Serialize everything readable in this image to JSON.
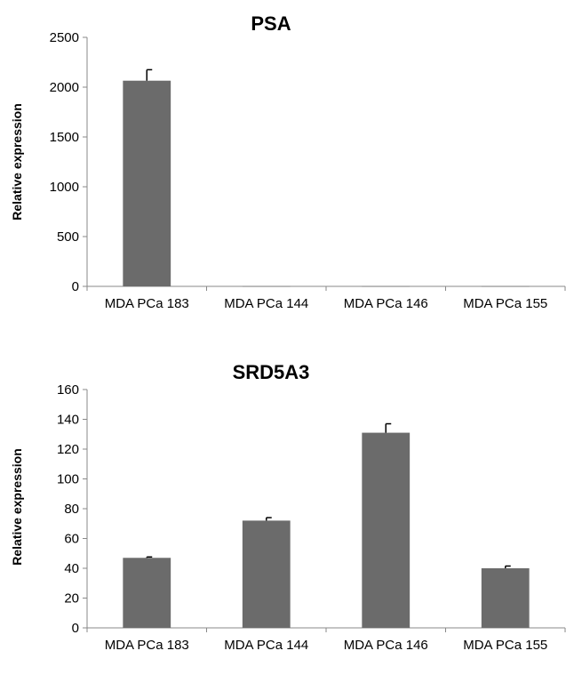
{
  "chart_data": [
    {
      "type": "bar",
      "title": "PSA",
      "xlabel": "",
      "ylabel": "Relative expression",
      "ylim": [
        0,
        2500
      ],
      "yticks": [
        0,
        500,
        1000,
        1500,
        2000,
        2500
      ],
      "categories": [
        "MDA PCa 183",
        "MDA PCa 144",
        "MDA PCa 146",
        "MDA PCa 155"
      ],
      "values": [
        2065,
        1,
        1,
        1
      ],
      "errors": [
        110,
        0,
        0,
        0
      ],
      "bar_color": "#6b6b6b",
      "grid": false
    },
    {
      "type": "bar",
      "title": "SRD5A3",
      "xlabel": "",
      "ylabel": "Relative expression",
      "ylim": [
        0,
        160
      ],
      "yticks": [
        0,
        20,
        40,
        60,
        80,
        100,
        120,
        140,
        160
      ],
      "categories": [
        "MDA PCa 183",
        "MDA PCa 144",
        "MDA PCa 146",
        "MDA PCa 155"
      ],
      "values": [
        47,
        72,
        131,
        40
      ],
      "errors": [
        0.6,
        2,
        6,
        1.5
      ],
      "bar_color": "#6b6b6b",
      "grid": false
    }
  ]
}
